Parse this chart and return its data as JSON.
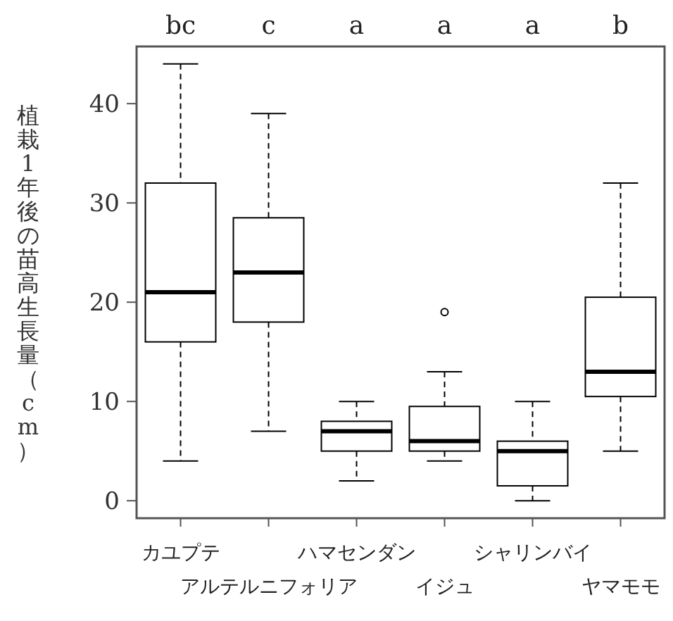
{
  "chart_data": {
    "type": "box",
    "ylabel": "植栽1年後の苗高生長量（cm）",
    "categories": [
      "カユプテ",
      "アルテルニフォリア",
      "ハマセンダン",
      "イジュ",
      "シャリンバイ",
      "ヤマモモ"
    ],
    "boxes": [
      {
        "low": 4,
        "q1": 16,
        "median": 21,
        "q3": 32,
        "high": 44
      },
      {
        "low": 7,
        "q1": 18,
        "median": 23,
        "q3": 28.5,
        "high": 39
      },
      {
        "low": 2,
        "q1": 5,
        "median": 7,
        "q3": 8,
        "high": 10
      },
      {
        "low": 4,
        "q1": 5,
        "median": 6,
        "q3": 9.5,
        "high": 13,
        "outliers": [
          19
        ]
      },
      {
        "low": 0,
        "q1": 1.5,
        "median": 5,
        "q3": 6,
        "high": 10
      },
      {
        "low": 5,
        "q1": 10.5,
        "median": 13,
        "q3": 20.5,
        "high": 32
      }
    ],
    "color": "#000000",
    "ylim": [
      -1.76,
      45.76
    ],
    "yticks": [
      0,
      10,
      20,
      30,
      40
    ],
    "annotations": [
      "bc",
      "c",
      "a",
      "a",
      "a",
      "b"
    ],
    "grid": false
  }
}
